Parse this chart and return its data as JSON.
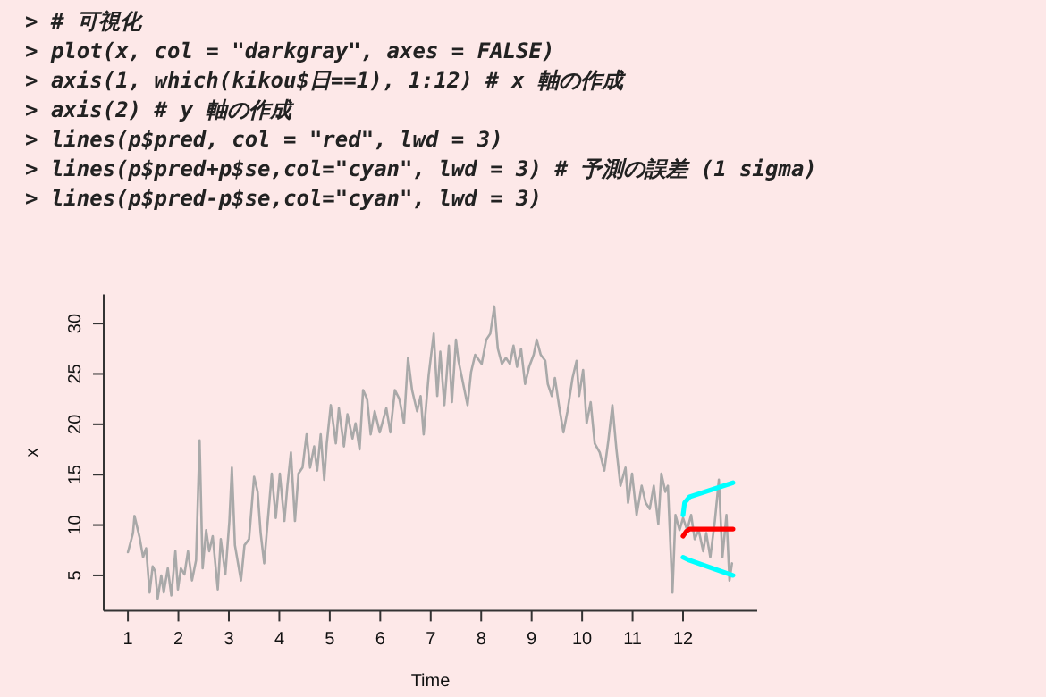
{
  "chart_data": {
    "type": "line",
    "annotations": [
      "> # 可視化",
      "> plot(x, col = \"darkgray\", axes = FALSE)",
      "> axis(1, which(kikou$日==1), 1:12) # x 軸の作成",
      "> axis(2) # y 軸の作成",
      "> lines(p$pred, col = \"red\", lwd = 3)",
      "> lines(p$pred+p$se,col=\"cyan\", lwd = 3) # 予測の誤差 (1 sigma)",
      "> lines(p$pred-p$se,col=\"cyan\", lwd = 3)"
    ],
    "xlabel": "Time",
    "ylabel": "x",
    "xlim": [
      0.52,
      13.47
    ],
    "ylim": [
      1.5,
      32.9
    ],
    "xticks": [
      1,
      2,
      3,
      4,
      5,
      6,
      7,
      8,
      9,
      10,
      11,
      12
    ],
    "yticks": [
      5,
      10,
      15,
      20,
      25,
      30
    ],
    "grid": false,
    "line_style": "solid",
    "series": [
      {
        "color": "#a9a9a9",
        "x": [
          1.0,
          1.1,
          1.13,
          1.23,
          1.3,
          1.36,
          1.43,
          1.49,
          1.54,
          1.59,
          1.66,
          1.71,
          1.79,
          1.86,
          1.94,
          1.99,
          2.05,
          2.12,
          2.19,
          2.27,
          2.35,
          2.42,
          2.48,
          2.55,
          2.61,
          2.68,
          2.78,
          2.84,
          2.93,
          3.01,
          3.06,
          3.12,
          3.24,
          3.31,
          3.4,
          3.5,
          3.57,
          3.63,
          3.7,
          3.75,
          3.85,
          3.93,
          4.01,
          4.1,
          4.16,
          4.23,
          4.31,
          4.38,
          4.46,
          4.54,
          4.61,
          4.69,
          4.75,
          4.82,
          4.89,
          4.94,
          5.02,
          5.12,
          5.18,
          5.28,
          5.35,
          5.45,
          5.51,
          5.59,
          5.66,
          5.74,
          5.81,
          5.89,
          5.99,
          6.12,
          6.2,
          6.29,
          6.38,
          6.47,
          6.55,
          6.63,
          6.73,
          6.8,
          6.86,
          6.96,
          7.06,
          7.13,
          7.19,
          7.27,
          7.36,
          7.42,
          7.5,
          7.55,
          7.62,
          7.73,
          7.8,
          7.88,
          8.01,
          8.1,
          8.18,
          8.26,
          8.33,
          8.41,
          8.49,
          8.57,
          8.64,
          8.71,
          8.79,
          8.87,
          8.95,
          9.04,
          9.1,
          9.18,
          9.27,
          9.32,
          9.4,
          9.46,
          9.55,
          9.63,
          9.71,
          9.81,
          9.89,
          9.94,
          10.02,
          10.09,
          10.17,
          10.25,
          10.35,
          10.44,
          10.52,
          10.6,
          10.68,
          10.76,
          10.86,
          10.91,
          10.99,
          11.08,
          11.18,
          11.26,
          11.34,
          11.42,
          11.51,
          11.57,
          11.65,
          11.7,
          11.79,
          11.85,
          11.93,
          12.0,
          12.08,
          12.16,
          12.23,
          12.31,
          12.4,
          12.46,
          12.54,
          12.63,
          12.71,
          12.78,
          12.86,
          12.92,
          12.97
        ],
        "values": [
          7.3,
          9.2,
          10.9,
          8.8,
          6.8,
          7.7,
          3.3,
          5.9,
          5.4,
          2.7,
          5.0,
          3.3,
          5.7,
          3.0,
          7.4,
          3.6,
          5.7,
          5.1,
          7.4,
          4.5,
          6.5,
          18.4,
          5.7,
          9.5,
          7.4,
          8.9,
          3.6,
          8.6,
          5.1,
          10.4,
          15.7,
          8.0,
          4.5,
          8.0,
          8.6,
          14.8,
          13.3,
          9.2,
          6.2,
          9.2,
          15.1,
          10.7,
          15.1,
          10.4,
          13.9,
          17.2,
          10.4,
          15.1,
          15.7,
          19.0,
          15.7,
          17.8,
          15.4,
          19.0,
          14.5,
          18.1,
          21.9,
          18.1,
          21.6,
          17.8,
          21.0,
          18.6,
          20.1,
          17.5,
          23.4,
          22.5,
          19.0,
          21.3,
          19.2,
          21.6,
          19.2,
          23.4,
          22.5,
          20.1,
          26.6,
          23.4,
          21.3,
          22.8,
          19.0,
          24.9,
          29.0,
          22.8,
          27.2,
          21.9,
          27.8,
          22.2,
          28.4,
          26.3,
          24.6,
          21.9,
          25.2,
          26.9,
          26.0,
          28.4,
          29.0,
          31.7,
          27.5,
          26.0,
          26.6,
          26.0,
          27.8,
          25.7,
          27.5,
          24.0,
          25.7,
          26.9,
          28.4,
          26.9,
          26.3,
          24.0,
          22.8,
          24.6,
          21.6,
          19.2,
          21.3,
          24.6,
          26.3,
          22.8,
          25.4,
          20.1,
          22.2,
          18.1,
          17.2,
          15.4,
          18.4,
          21.9,
          17.5,
          13.9,
          15.7,
          12.2,
          15.1,
          11.0,
          13.9,
          12.2,
          11.6,
          13.9,
          10.1,
          15.1,
          13.3,
          13.9,
          3.3,
          11.0,
          9.5,
          10.7,
          9.5,
          11.0,
          8.6,
          9.5,
          7.4,
          9.2,
          6.8,
          10.4,
          14.5,
          6.8,
          11.0,
          4.5,
          6.2
        ]
      },
      {
        "color": "#ff0000",
        "x": [
          12.0,
          12.07,
          12.13,
          12.99
        ],
        "values": [
          8.9,
          9.4,
          9.6,
          9.6
        ]
      },
      {
        "color": "#00ffff",
        "x": [
          12.0,
          12.03,
          12.13,
          12.99
        ],
        "values": [
          11.0,
          12.2,
          12.8,
          14.2
        ]
      },
      {
        "color": "#00ffff",
        "x": [
          12.0,
          12.13,
          12.99
        ],
        "values": [
          6.8,
          6.5,
          5.0
        ]
      }
    ]
  }
}
